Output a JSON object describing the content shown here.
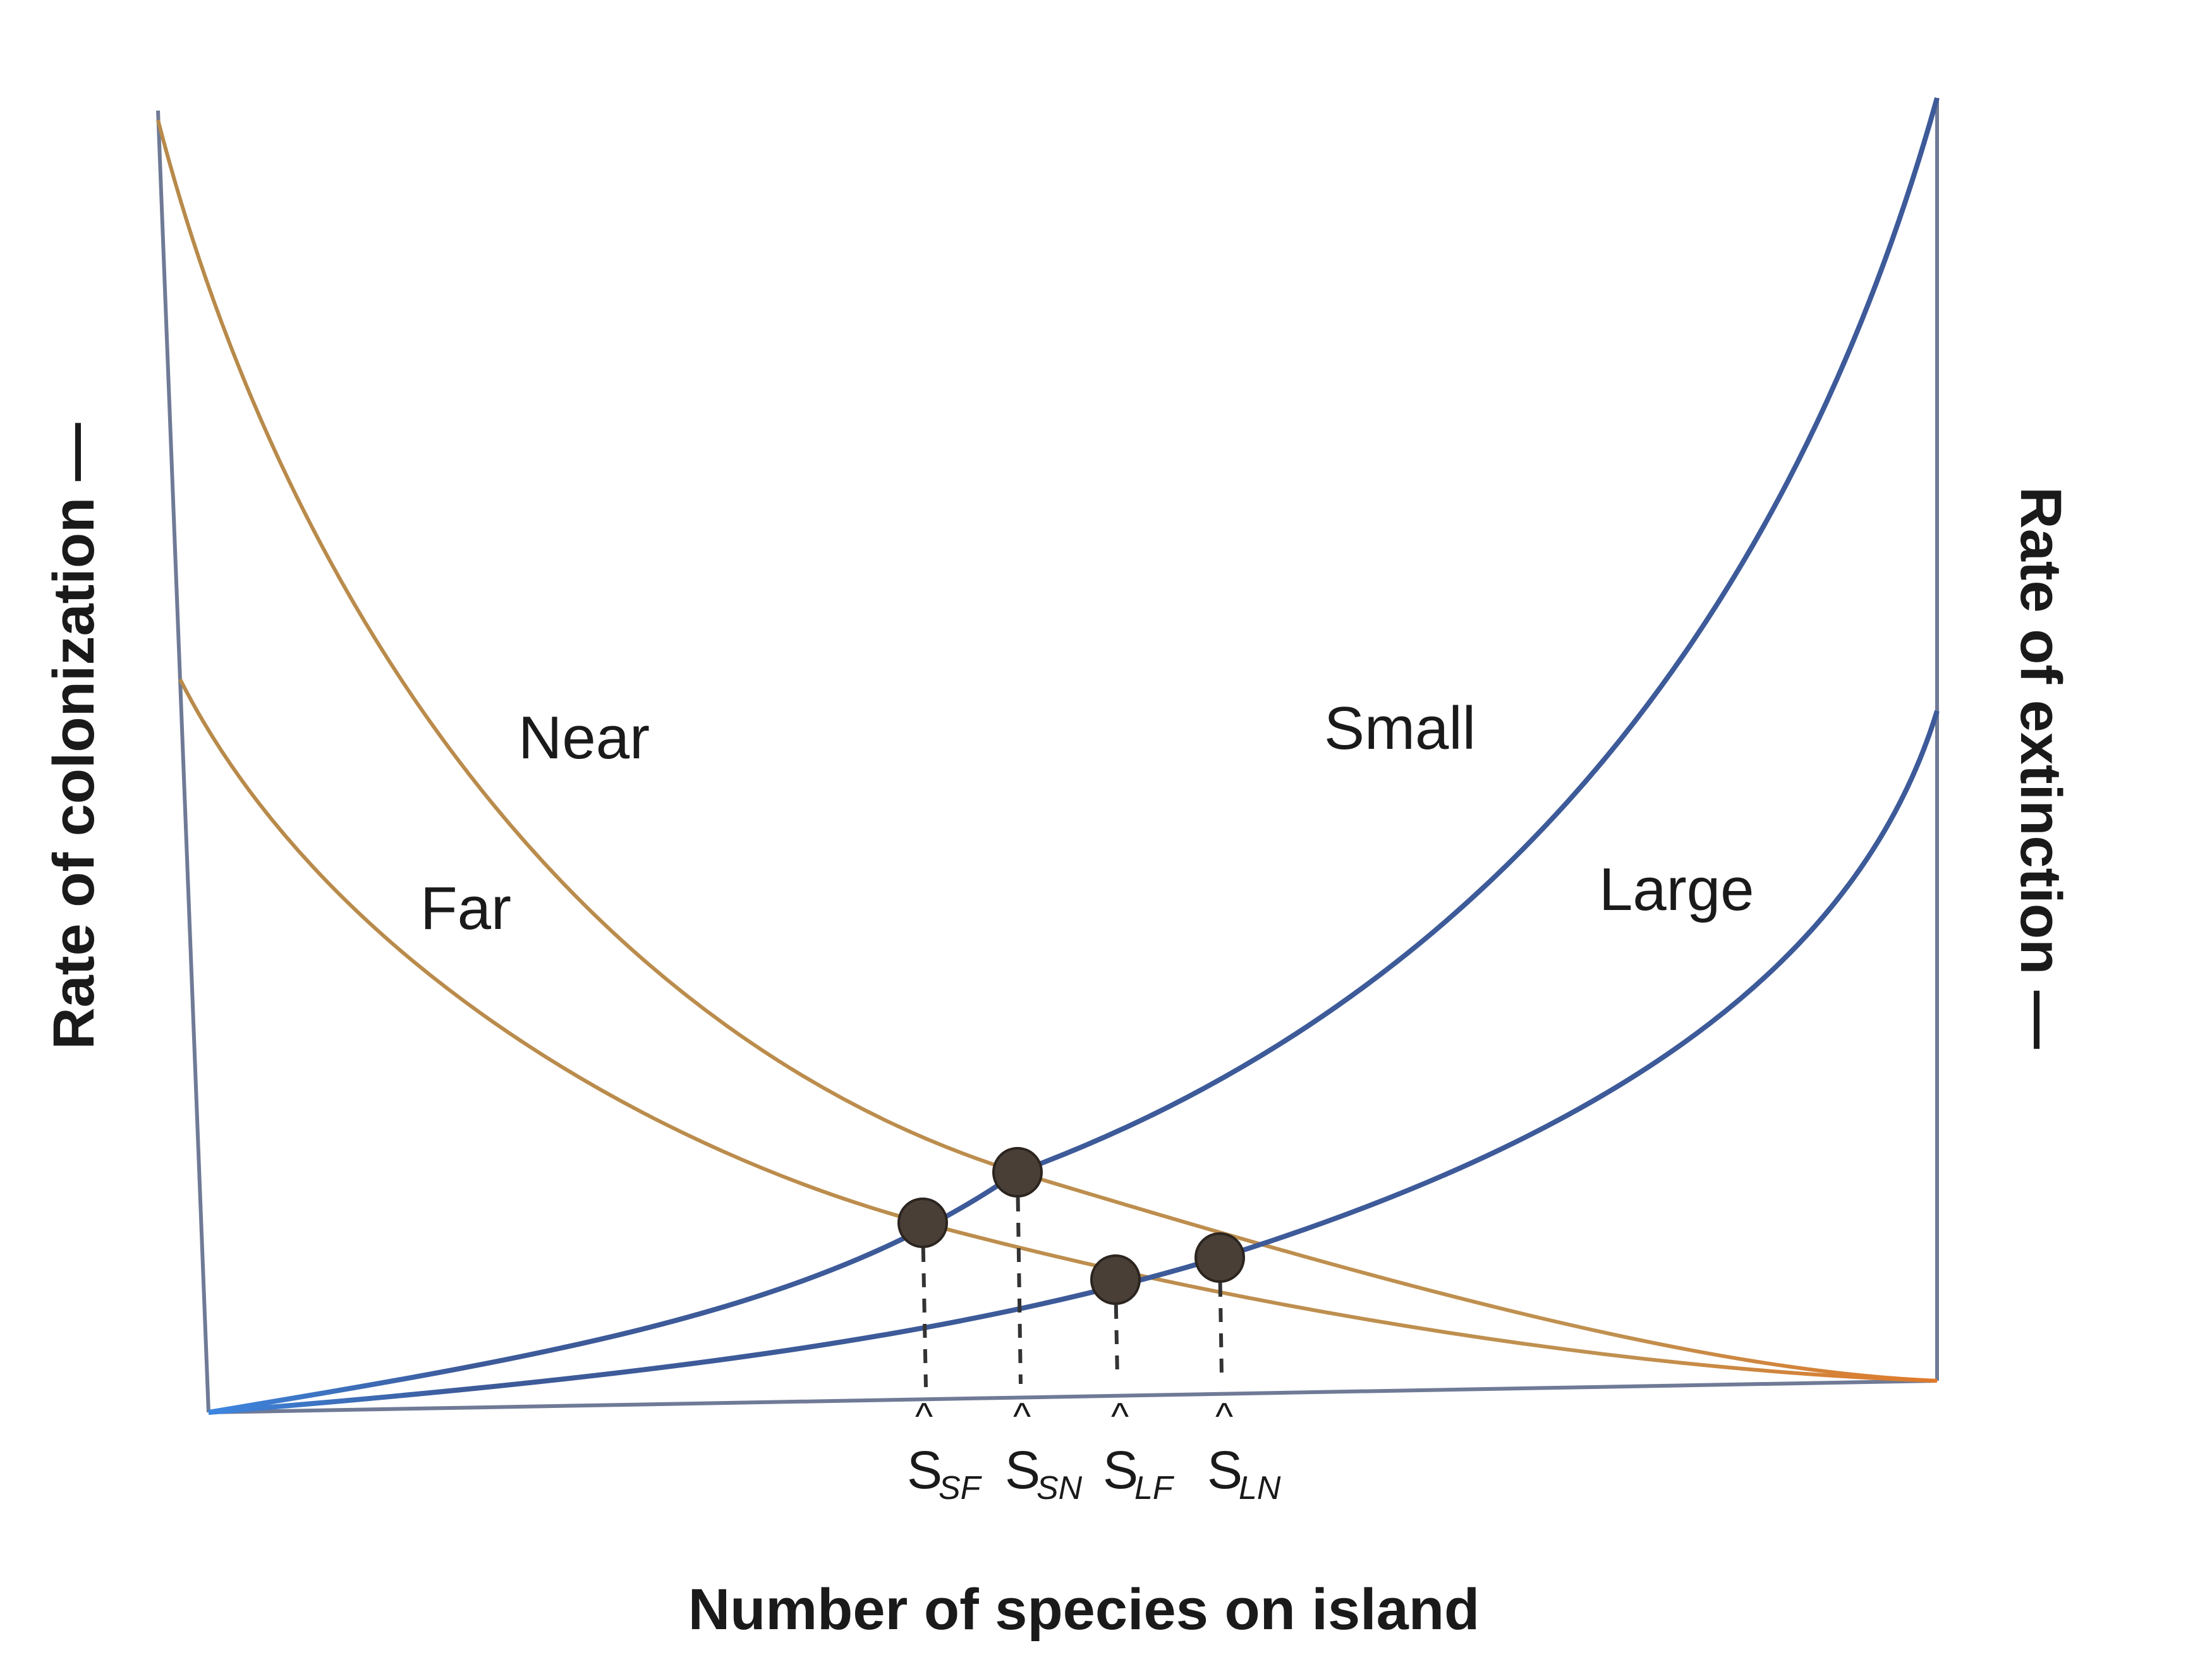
{
  "diagram": {
    "x_axis_label": "Number of species on island",
    "left_axis_label": "Rate of colonization —",
    "right_axis_label": "Rate of extinction —",
    "colonization_curves": [
      {
        "id": "near",
        "label": "Near"
      },
      {
        "id": "far",
        "label": "Far"
      }
    ],
    "extinction_curves": [
      {
        "id": "small",
        "label": "Small"
      },
      {
        "id": "large",
        "label": "Large"
      }
    ],
    "equilibria": [
      {
        "id": "sf",
        "base": "S",
        "hat": "^",
        "sub": "SF"
      },
      {
        "id": "sn",
        "base": "S",
        "hat": "^",
        "sub": "SN"
      },
      {
        "id": "lf",
        "base": "S",
        "hat": "^",
        "sub": "LF"
      },
      {
        "id": "ln",
        "base": "S",
        "hat": "^",
        "sub": "LN"
      }
    ],
    "colors": {
      "colonization": "#b88a4a",
      "colonization_tail": "#e07a2a",
      "extinction": "#3d5a99",
      "extinction_head": "#3d86e0",
      "axes": "#6f7a96",
      "equilibrium_point": "#4a3f37"
    }
  }
}
